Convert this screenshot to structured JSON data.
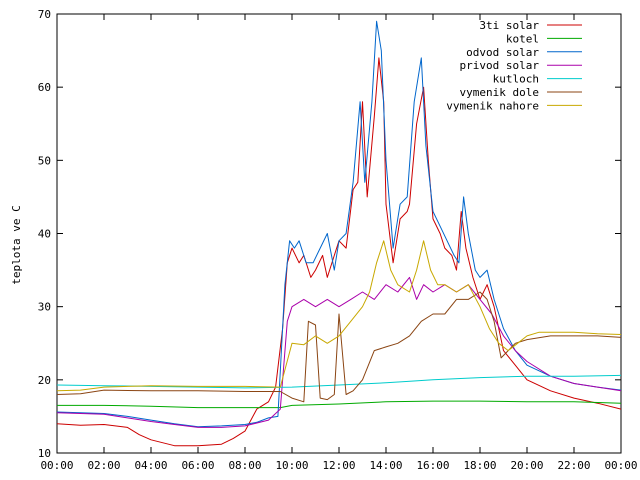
{
  "chart_data": {
    "type": "line",
    "ylabel": "teplota ve C",
    "xlabel": "",
    "title": "",
    "ylim": [
      10,
      70
    ],
    "xlim": [
      0,
      24
    ],
    "yticks": [
      10,
      20,
      30,
      40,
      50,
      60,
      70
    ],
    "xticks": [
      {
        "v": 0,
        "label": "00:00"
      },
      {
        "v": 2,
        "label": "02:00"
      },
      {
        "v": 4,
        "label": "04:00"
      },
      {
        "v": 6,
        "label": "06:00"
      },
      {
        "v": 8,
        "label": "08:00"
      },
      {
        "v": 10,
        "label": "10:00"
      },
      {
        "v": 12,
        "label": "12:00"
      },
      {
        "v": 14,
        "label": "14:00"
      },
      {
        "v": 16,
        "label": "16:00"
      },
      {
        "v": 18,
        "label": "18:00"
      },
      {
        "v": 20,
        "label": "20:00"
      },
      {
        "v": 22,
        "label": "22:00"
      },
      {
        "v": 24,
        "label": "00:00"
      }
    ],
    "legend_position": "top-right",
    "grid": false,
    "series": [
      {
        "name": "3ti solar",
        "color": "#cc0000",
        "points": [
          [
            0,
            14
          ],
          [
            1,
            13.8
          ],
          [
            2,
            13.9
          ],
          [
            3,
            13.5
          ],
          [
            3.5,
            12.5
          ],
          [
            4,
            11.8
          ],
          [
            5,
            11
          ],
          [
            6,
            11
          ],
          [
            7,
            11.2
          ],
          [
            7.5,
            12
          ],
          [
            8,
            13
          ],
          [
            8.5,
            16
          ],
          [
            9,
            17
          ],
          [
            9.3,
            19
          ],
          [
            9.6,
            27
          ],
          [
            9.8,
            36
          ],
          [
            10,
            38
          ],
          [
            10.3,
            36
          ],
          [
            10.5,
            37
          ],
          [
            10.8,
            34
          ],
          [
            11,
            35
          ],
          [
            11.3,
            37
          ],
          [
            11.5,
            34
          ],
          [
            11.8,
            37
          ],
          [
            12,
            39
          ],
          [
            12.3,
            38
          ],
          [
            12.6,
            46
          ],
          [
            12.8,
            47
          ],
          [
            13,
            58
          ],
          [
            13.2,
            45
          ],
          [
            13.5,
            56
          ],
          [
            13.7,
            64
          ],
          [
            13.9,
            58
          ],
          [
            14,
            44
          ],
          [
            14.3,
            36
          ],
          [
            14.6,
            42
          ],
          [
            14.9,
            43
          ],
          [
            15,
            44
          ],
          [
            15.3,
            55
          ],
          [
            15.6,
            60
          ],
          [
            15.8,
            50
          ],
          [
            16,
            42
          ],
          [
            16.3,
            40
          ],
          [
            16.5,
            38
          ],
          [
            16.8,
            37
          ],
          [
            17,
            35
          ],
          [
            17.2,
            43
          ],
          [
            17.4,
            38
          ],
          [
            17.7,
            34
          ],
          [
            18,
            31
          ],
          [
            18.3,
            33
          ],
          [
            18.6,
            30
          ],
          [
            19,
            24
          ],
          [
            19.5,
            22
          ],
          [
            20,
            20
          ],
          [
            21,
            18.5
          ],
          [
            22,
            17.5
          ],
          [
            23,
            16.8
          ],
          [
            24,
            16
          ]
        ]
      },
      {
        "name": "kotel",
        "color": "#00aa00",
        "points": [
          [
            0,
            16.5
          ],
          [
            2,
            16.5
          ],
          [
            4,
            16.4
          ],
          [
            6,
            16.2
          ],
          [
            8,
            16.2
          ],
          [
            9.5,
            16.2
          ],
          [
            10,
            16.5
          ],
          [
            12,
            16.7
          ],
          [
            14,
            17
          ],
          [
            16,
            17.1
          ],
          [
            18,
            17.1
          ],
          [
            20,
            17
          ],
          [
            22,
            17
          ],
          [
            24,
            16.8
          ]
        ]
      },
      {
        "name": "odvod solar",
        "color": "#0066cc",
        "points": [
          [
            0,
            15.6
          ],
          [
            1,
            15.5
          ],
          [
            2,
            15.4
          ],
          [
            3,
            15
          ],
          [
            4,
            14.5
          ],
          [
            5,
            14
          ],
          [
            6,
            13.6
          ],
          [
            7,
            13.7
          ],
          [
            8,
            13.9
          ],
          [
            8.5,
            14.2
          ],
          [
            9,
            14.8
          ],
          [
            9.4,
            15
          ],
          [
            9.7,
            33
          ],
          [
            9.9,
            39
          ],
          [
            10.1,
            38
          ],
          [
            10.3,
            39
          ],
          [
            10.6,
            36
          ],
          [
            10.9,
            36
          ],
          [
            11.2,
            38
          ],
          [
            11.5,
            40
          ],
          [
            11.8,
            35
          ],
          [
            12,
            39
          ],
          [
            12.3,
            40
          ],
          [
            12.6,
            47
          ],
          [
            12.9,
            58
          ],
          [
            13.1,
            47
          ],
          [
            13.4,
            58
          ],
          [
            13.6,
            69
          ],
          [
            13.8,
            65
          ],
          [
            14,
            50
          ],
          [
            14.3,
            38
          ],
          [
            14.6,
            44
          ],
          [
            14.9,
            45
          ],
          [
            15.2,
            58
          ],
          [
            15.5,
            64
          ],
          [
            15.7,
            52
          ],
          [
            16,
            43
          ],
          [
            16.3,
            41
          ],
          [
            16.6,
            39
          ],
          [
            16.9,
            37
          ],
          [
            17.1,
            36
          ],
          [
            17.3,
            45
          ],
          [
            17.5,
            40
          ],
          [
            17.8,
            35
          ],
          [
            18,
            34
          ],
          [
            18.3,
            35
          ],
          [
            18.6,
            31
          ],
          [
            19,
            27
          ],
          [
            19.5,
            24
          ],
          [
            20,
            22
          ],
          [
            21,
            20.5
          ],
          [
            22,
            19.5
          ],
          [
            23,
            19
          ],
          [
            24,
            18.6
          ]
        ]
      },
      {
        "name": "privod solar",
        "color": "#aa00aa",
        "points": [
          [
            0,
            15.5
          ],
          [
            1,
            15.4
          ],
          [
            2,
            15.3
          ],
          [
            3,
            14.8
          ],
          [
            4,
            14.3
          ],
          [
            5,
            13.9
          ],
          [
            6,
            13.5
          ],
          [
            7,
            13.5
          ],
          [
            8,
            13.7
          ],
          [
            9,
            14.5
          ],
          [
            9.5,
            16
          ],
          [
            9.8,
            28
          ],
          [
            10,
            30
          ],
          [
            10.5,
            31
          ],
          [
            11,
            30
          ],
          [
            11.5,
            31
          ],
          [
            12,
            30
          ],
          [
            12.5,
            31
          ],
          [
            13,
            32
          ],
          [
            13.5,
            31
          ],
          [
            14,
            33
          ],
          [
            14.5,
            32
          ],
          [
            15,
            34
          ],
          [
            15.3,
            31
          ],
          [
            15.6,
            33
          ],
          [
            16,
            32
          ],
          [
            16.5,
            33
          ],
          [
            17,
            32
          ],
          [
            17.5,
            33
          ],
          [
            18,
            31
          ],
          [
            18.5,
            29
          ],
          [
            19,
            26
          ],
          [
            19.5,
            24
          ],
          [
            20,
            22.5
          ],
          [
            21,
            20.5
          ],
          [
            22,
            19.5
          ],
          [
            23,
            19
          ],
          [
            24,
            18.5
          ]
        ]
      },
      {
        "name": "kutloch",
        "color": "#00cccc",
        "points": [
          [
            0,
            19.3
          ],
          [
            2,
            19.2
          ],
          [
            4,
            19.1
          ],
          [
            6,
            19
          ],
          [
            8,
            18.9
          ],
          [
            10,
            19
          ],
          [
            12,
            19.3
          ],
          [
            14,
            19.6
          ],
          [
            16,
            20
          ],
          [
            18,
            20.3
          ],
          [
            20,
            20.5
          ],
          [
            22,
            20.5
          ],
          [
            24,
            20.6
          ]
        ]
      },
      {
        "name": "vymenik dole",
        "color": "#8b4513",
        "points": [
          [
            0,
            18
          ],
          [
            1,
            18.1
          ],
          [
            2,
            18.6
          ],
          [
            4,
            18.5
          ],
          [
            6,
            18.5
          ],
          [
            8,
            18.4
          ],
          [
            9.5,
            18.4
          ],
          [
            10,
            17.5
          ],
          [
            10.5,
            17
          ],
          [
            10.7,
            28
          ],
          [
            11,
            27.5
          ],
          [
            11.2,
            17.5
          ],
          [
            11.5,
            17.3
          ],
          [
            11.8,
            18
          ],
          [
            12,
            29
          ],
          [
            12.3,
            18
          ],
          [
            12.6,
            18.5
          ],
          [
            13,
            20
          ],
          [
            13.5,
            24
          ],
          [
            14,
            24.5
          ],
          [
            14.5,
            25
          ],
          [
            15,
            26
          ],
          [
            15.5,
            28
          ],
          [
            16,
            29
          ],
          [
            16.5,
            29
          ],
          [
            17,
            31
          ],
          [
            17.5,
            31
          ],
          [
            18,
            32
          ],
          [
            18.3,
            31
          ],
          [
            18.6,
            28
          ],
          [
            18.9,
            23
          ],
          [
            19.2,
            24
          ],
          [
            19.5,
            25
          ],
          [
            20,
            25.5
          ],
          [
            21,
            26
          ],
          [
            22,
            26
          ],
          [
            23,
            26
          ],
          [
            24,
            25.8
          ]
        ]
      },
      {
        "name": "vymenik nahore",
        "color": "#c8a800",
        "points": [
          [
            0,
            18.5
          ],
          [
            1,
            18.6
          ],
          [
            2,
            19
          ],
          [
            4,
            19.2
          ],
          [
            6,
            19.1
          ],
          [
            8,
            19.1
          ],
          [
            9.5,
            19
          ],
          [
            10,
            25
          ],
          [
            10.5,
            24.8
          ],
          [
            11,
            26
          ],
          [
            11.5,
            25
          ],
          [
            12,
            26
          ],
          [
            12.5,
            28
          ],
          [
            13,
            30
          ],
          [
            13.3,
            32
          ],
          [
            13.6,
            36
          ],
          [
            13.9,
            39
          ],
          [
            14.2,
            35
          ],
          [
            14.5,
            33
          ],
          [
            15,
            32
          ],
          [
            15.3,
            35
          ],
          [
            15.6,
            39
          ],
          [
            15.9,
            35
          ],
          [
            16.2,
            33
          ],
          [
            16.5,
            33
          ],
          [
            17,
            32
          ],
          [
            17.5,
            33
          ],
          [
            18,
            30
          ],
          [
            18.4,
            27
          ],
          [
            18.8,
            25
          ],
          [
            19.2,
            24
          ],
          [
            19.6,
            25
          ],
          [
            20,
            26
          ],
          [
            20.5,
            26.5
          ],
          [
            22,
            26.5
          ],
          [
            23,
            26.3
          ],
          [
            24,
            26.2
          ]
        ]
      }
    ]
  }
}
